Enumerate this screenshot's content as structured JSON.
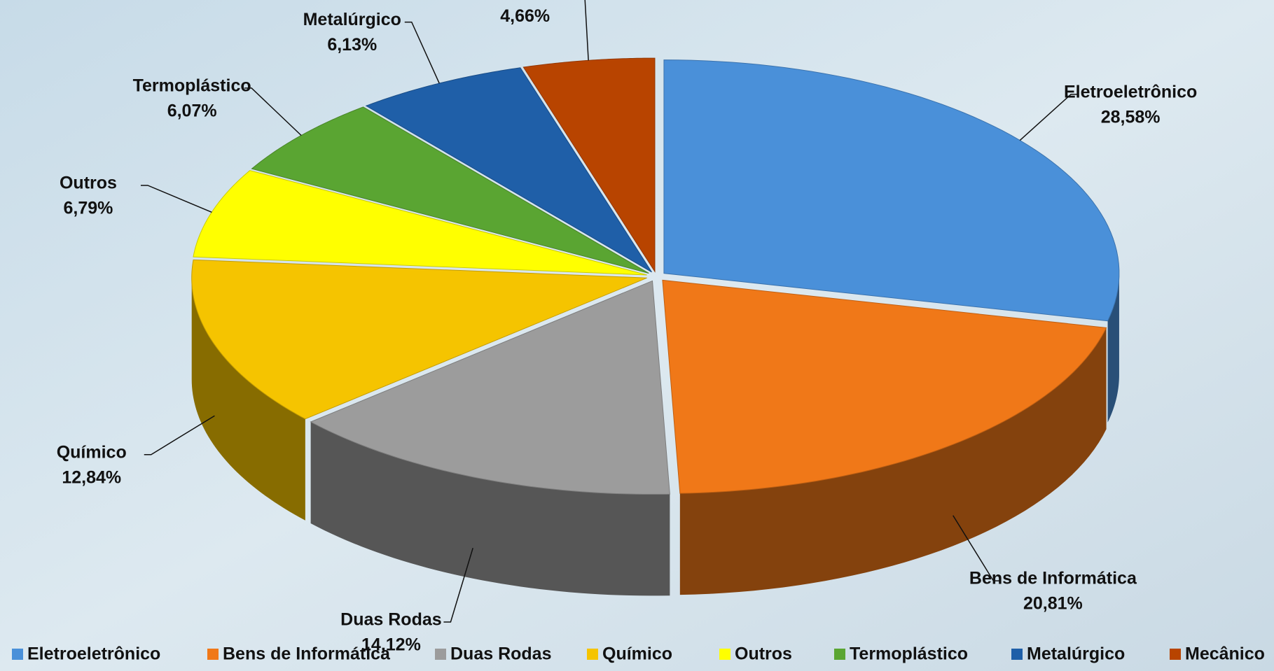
{
  "chart_data": {
    "type": "pie",
    "categories": [
      "Eletroeletrônico",
      "Bens de Informática",
      "Duas Rodas",
      "Químico",
      "Outros",
      "Termoplástico",
      "Metalúrgico",
      "Mecânico"
    ],
    "values": [
      28.58,
      20.81,
      14.12,
      12.84,
      6.79,
      6.07,
      6.13,
      4.66
    ],
    "value_labels": [
      "28,58%",
      "20,81%",
      "14,12%",
      "12,84%",
      "6,79%",
      "6,07%",
      "6,13%",
      "4,66%"
    ],
    "colors": [
      "#4a90d9",
      "#f07818",
      "#9c9c9c",
      "#f5c400",
      "#ffff00",
      "#5aa532",
      "#1f5fa8",
      "#b84400"
    ],
    "legend": "bottom"
  }
}
